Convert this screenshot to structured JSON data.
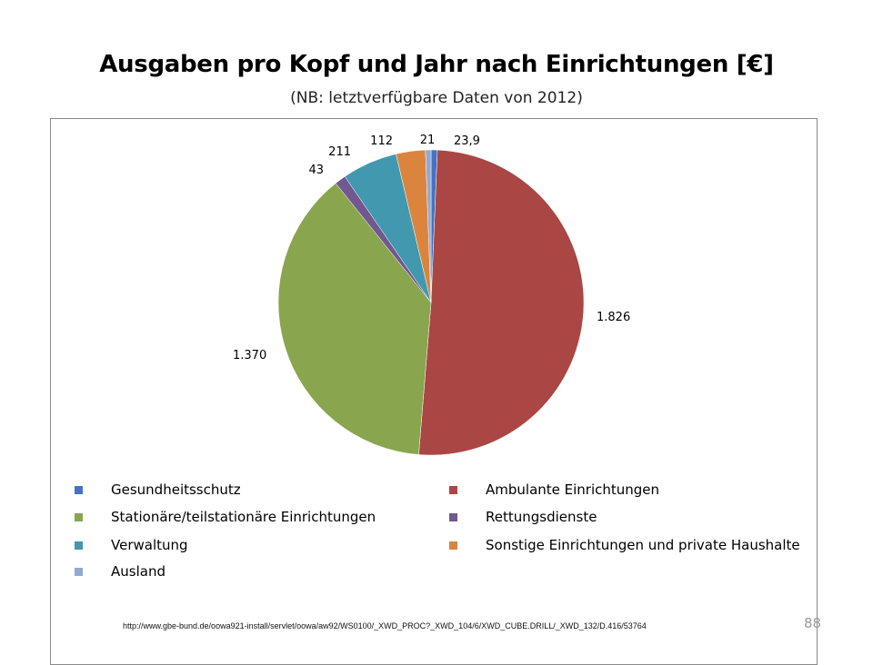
{
  "title": "Ausgaben pro Kopf und Jahr nach Einrichtungen [€]",
  "subtitle": "(NB: letztverfügbare  Daten von 2012)",
  "chart_data": {
    "type": "pie",
    "title": "Ausgaben pro Kopf und Jahr nach Einrichtungen [€]",
    "subtitle": "(NB: letztverfügbare  Daten von 2012)",
    "legend_position": "bottom",
    "slices": [
      {
        "name": "Gesundheitsschutz",
        "value": 23.9,
        "label": "23,9",
        "color": "#4472C4"
      },
      {
        "name": "Ambulante Einrichtungen",
        "value": 1826,
        "label": "1.826",
        "color": "#AA4643"
      },
      {
        "name": "Stationäre/teilstationäre Einrichtungen",
        "value": 1370,
        "label": "1.370",
        "color": "#89A54E"
      },
      {
        "name": "Rettungsdienste",
        "value": 43,
        "label": "43",
        "color": "#71588F"
      },
      {
        "name": "Verwaltung",
        "value": 211,
        "label": "211",
        "color": "#4198AF"
      },
      {
        "name": "Sonstige Einrichtungen und private Haushalte",
        "value": 112,
        "label": "112",
        "color": "#DB843D"
      },
      {
        "name": "Ausland",
        "value": 21,
        "label": "21",
        "color": "#93A9CF"
      }
    ]
  },
  "source_url": "http://www.gbe-bund.de/oowa921-install/servlet/oowa/aw92/WS0100/_XWD_PROC?_XWD_104/6/XWD_CUBE.DRILL/_XWD_132/D.416/53764",
  "page_number": "88"
}
